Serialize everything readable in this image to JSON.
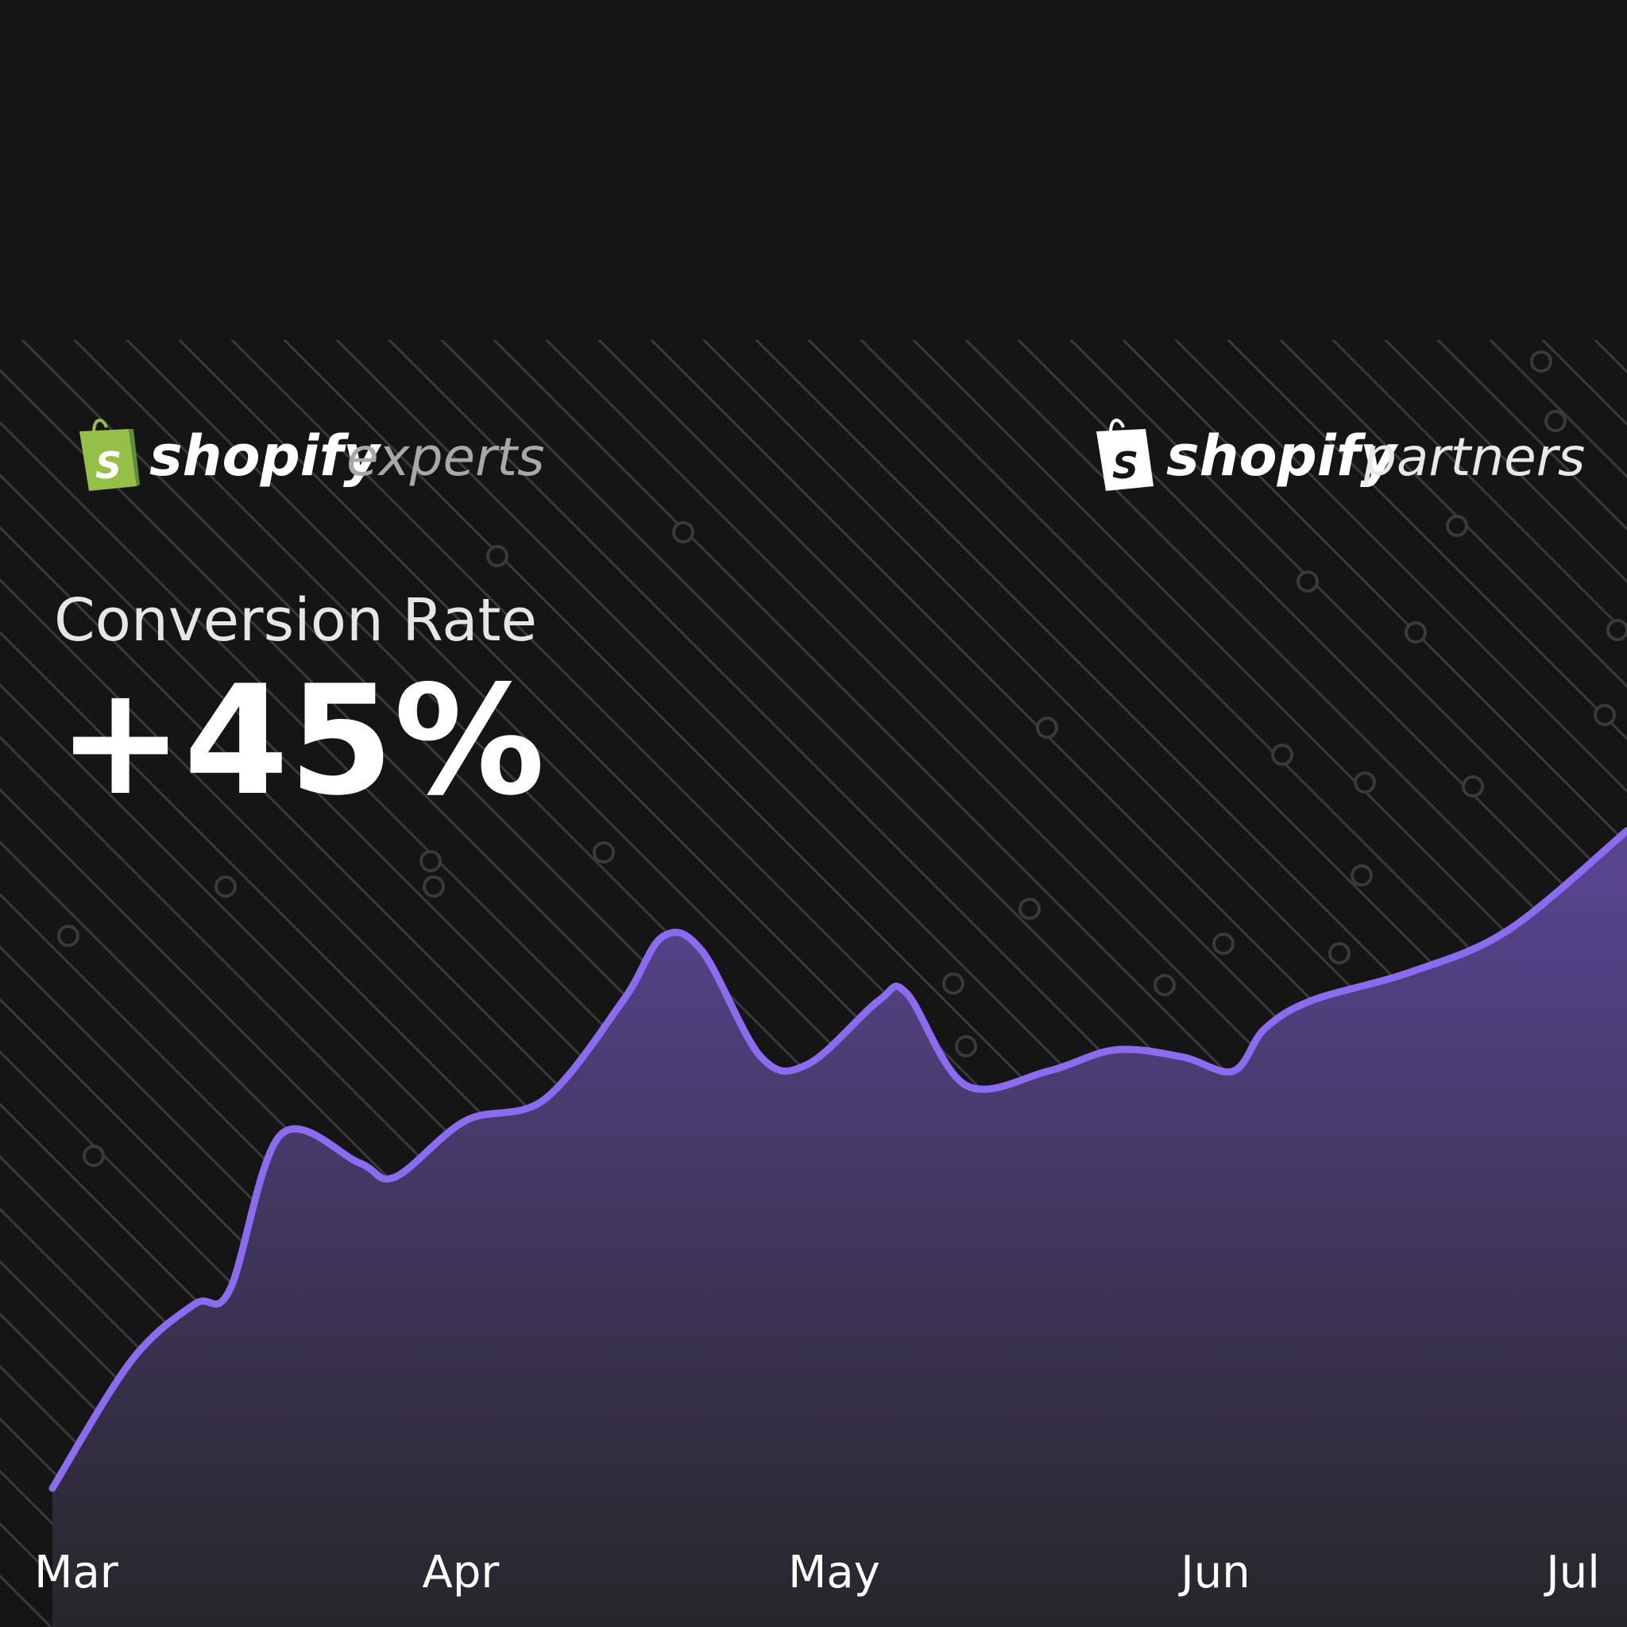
{
  "header": {
    "logo_left": {
      "word": "shopify",
      "suffix": "experts",
      "bag_letter": "S"
    },
    "logo_right": {
      "word": "shopify",
      "suffix": "partners",
      "bag_letter": "S"
    }
  },
  "metric": {
    "label": "Conversion Rate",
    "value": "+45%"
  },
  "colors": {
    "background": "#151516",
    "line": "#8b6cf0",
    "fill_top": "#5a4694",
    "fill_bottom": "#272629",
    "shopify_green": "#95bf47",
    "circuit": "#3a3a3c"
  },
  "chart_data": {
    "type": "area",
    "title": "",
    "xlabel": "",
    "ylabel": "",
    "x_ticks": [
      "Mar",
      "Apr",
      "May",
      "Jun",
      "Jul"
    ],
    "x_range": [
      0,
      4
    ],
    "ylim": [
      0,
      100
    ],
    "grid": false,
    "legend": "none",
    "series": [
      {
        "name": "",
        "points": [
          [
            0.0,
            3
          ],
          [
            0.2,
            21
          ],
          [
            0.36,
            29
          ],
          [
            0.45,
            31
          ],
          [
            0.58,
            53
          ],
          [
            0.78,
            49
          ],
          [
            0.87,
            47
          ],
          [
            1.05,
            55
          ],
          [
            1.25,
            58
          ],
          [
            1.45,
            72
          ],
          [
            1.55,
            81
          ],
          [
            1.65,
            79
          ],
          [
            1.8,
            64
          ],
          [
            1.92,
            63
          ],
          [
            2.1,
            72
          ],
          [
            2.17,
            73
          ],
          [
            2.32,
            60
          ],
          [
            2.53,
            62
          ],
          [
            2.7,
            65
          ],
          [
            2.87,
            64
          ],
          [
            3.0,
            62
          ],
          [
            3.08,
            68
          ],
          [
            3.2,
            72
          ],
          [
            3.45,
            76
          ],
          [
            3.7,
            82
          ],
          [
            4.0,
            96
          ]
        ]
      }
    ]
  }
}
